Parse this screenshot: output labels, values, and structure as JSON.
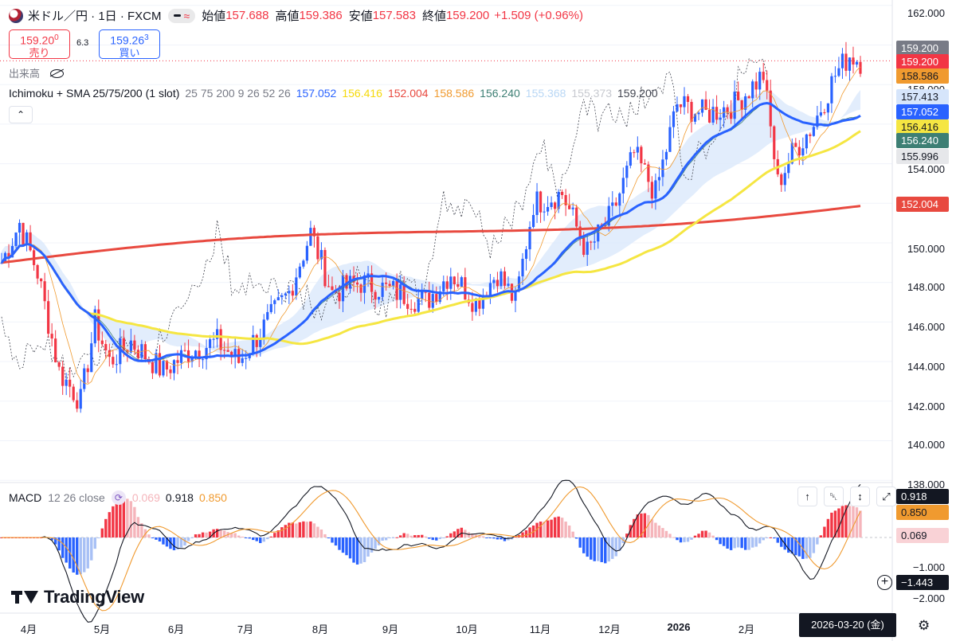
{
  "header": {
    "symbol_title": "米ドル／円 · 1日 · FXCM",
    "ohlc": [
      {
        "label": "始値",
        "value": "157.688"
      },
      {
        "label": "高値",
        "value": "159.386"
      },
      {
        "label": "安値",
        "value": "157.583"
      },
      {
        "label": "終値",
        "value": "159.200"
      }
    ],
    "change": "+1.509 (+0.96%)"
  },
  "trade": {
    "sell_price_main": "159.20",
    "sell_price_sup": "0",
    "sell_label": "売り",
    "spread": "6.3",
    "buy_price_main": "159.26",
    "buy_price_sup": "3",
    "buy_label": "買い"
  },
  "volume_label": "出来高",
  "indicator": {
    "name": "Ichimoku + SMA 25/75/200 (1 slot)",
    "params": "25 75 200 9 26 52 26",
    "values": [
      {
        "text": "157.052",
        "color": "#2962ff"
      },
      {
        "text": "156.416",
        "color": "#f5d90a"
      },
      {
        "text": "152.004",
        "color": "#e8493f"
      },
      {
        "text": "158.586",
        "color": "#f09a2f"
      },
      {
        "text": "156.240",
        "color": "#3d7f74"
      },
      {
        "text": "155.368",
        "color": "#b9d7f5"
      },
      {
        "text": "155.373",
        "color": "#c7c9cf"
      },
      {
        "text": "159.200",
        "color": "#434651"
      }
    ]
  },
  "macd": {
    "label": "MACD",
    "params": "12 26 close",
    "values": [
      {
        "text": "0.069",
        "color": "#f5b5bb"
      },
      {
        "text": "0.918",
        "color": "#131722"
      },
      {
        "text": "0.850",
        "color": "#f09a2f"
      }
    ]
  },
  "price_axis": {
    "labels": [
      "162.000",
      "158.000",
      "154.000",
      "150.000",
      "148.000",
      "146.000",
      "144.000",
      "142.000",
      "140.000",
      "138.000"
    ],
    "tags": [
      {
        "text": "159.200",
        "bg": "#787b86",
        "fg": "#ffffff"
      },
      {
        "text": "159.200",
        "bg": "#f23645",
        "fg": "#ffffff"
      },
      {
        "text": "158.586",
        "bg": "#f09a2f",
        "fg": "#131722"
      },
      {
        "text": "157.413",
        "bg": "#d6e5fb",
        "fg": "#131722"
      },
      {
        "text": "157.052",
        "bg": "#2962ff",
        "fg": "#ffffff"
      },
      {
        "text": "156.416",
        "bg": "#f5e642",
        "fg": "#131722"
      },
      {
        "text": "156.240",
        "bg": "#3d7f74",
        "fg": "#ffffff"
      },
      {
        "text": "155.996",
        "bg": "#e6e7ea",
        "fg": "#131722"
      },
      {
        "text": "152.004",
        "bg": "#e8493f",
        "fg": "#ffffff"
      }
    ]
  },
  "macd_axis": {
    "labels": [
      "−1.000",
      "−2.000"
    ],
    "tags": [
      {
        "text": "0.918",
        "bg": "#131722",
        "fg": "#ffffff"
      },
      {
        "text": "0.850",
        "bg": "#f09a2f",
        "fg": "#131722"
      },
      {
        "text": "0.069",
        "bg": "#f9d2d6",
        "fg": "#131722"
      },
      {
        "text": "−1.443",
        "bg": "#131722",
        "fg": "#ffffff"
      }
    ]
  },
  "time_axis": {
    "months": [
      "4月",
      "5月",
      "6月",
      "7月",
      "8月",
      "9月",
      "10月",
      "11月",
      "12月",
      "2026",
      "2月"
    ],
    "crosshair_date": "2026-03-20 (金)"
  },
  "branding": "TradingView",
  "icons": {
    "up_arrow": "↑",
    "trash": "🗑",
    "collapse": "⌄",
    "maximize": "⤢",
    "plus": "+",
    "gear": "⚙",
    "chevron_up": "⌃"
  }
}
